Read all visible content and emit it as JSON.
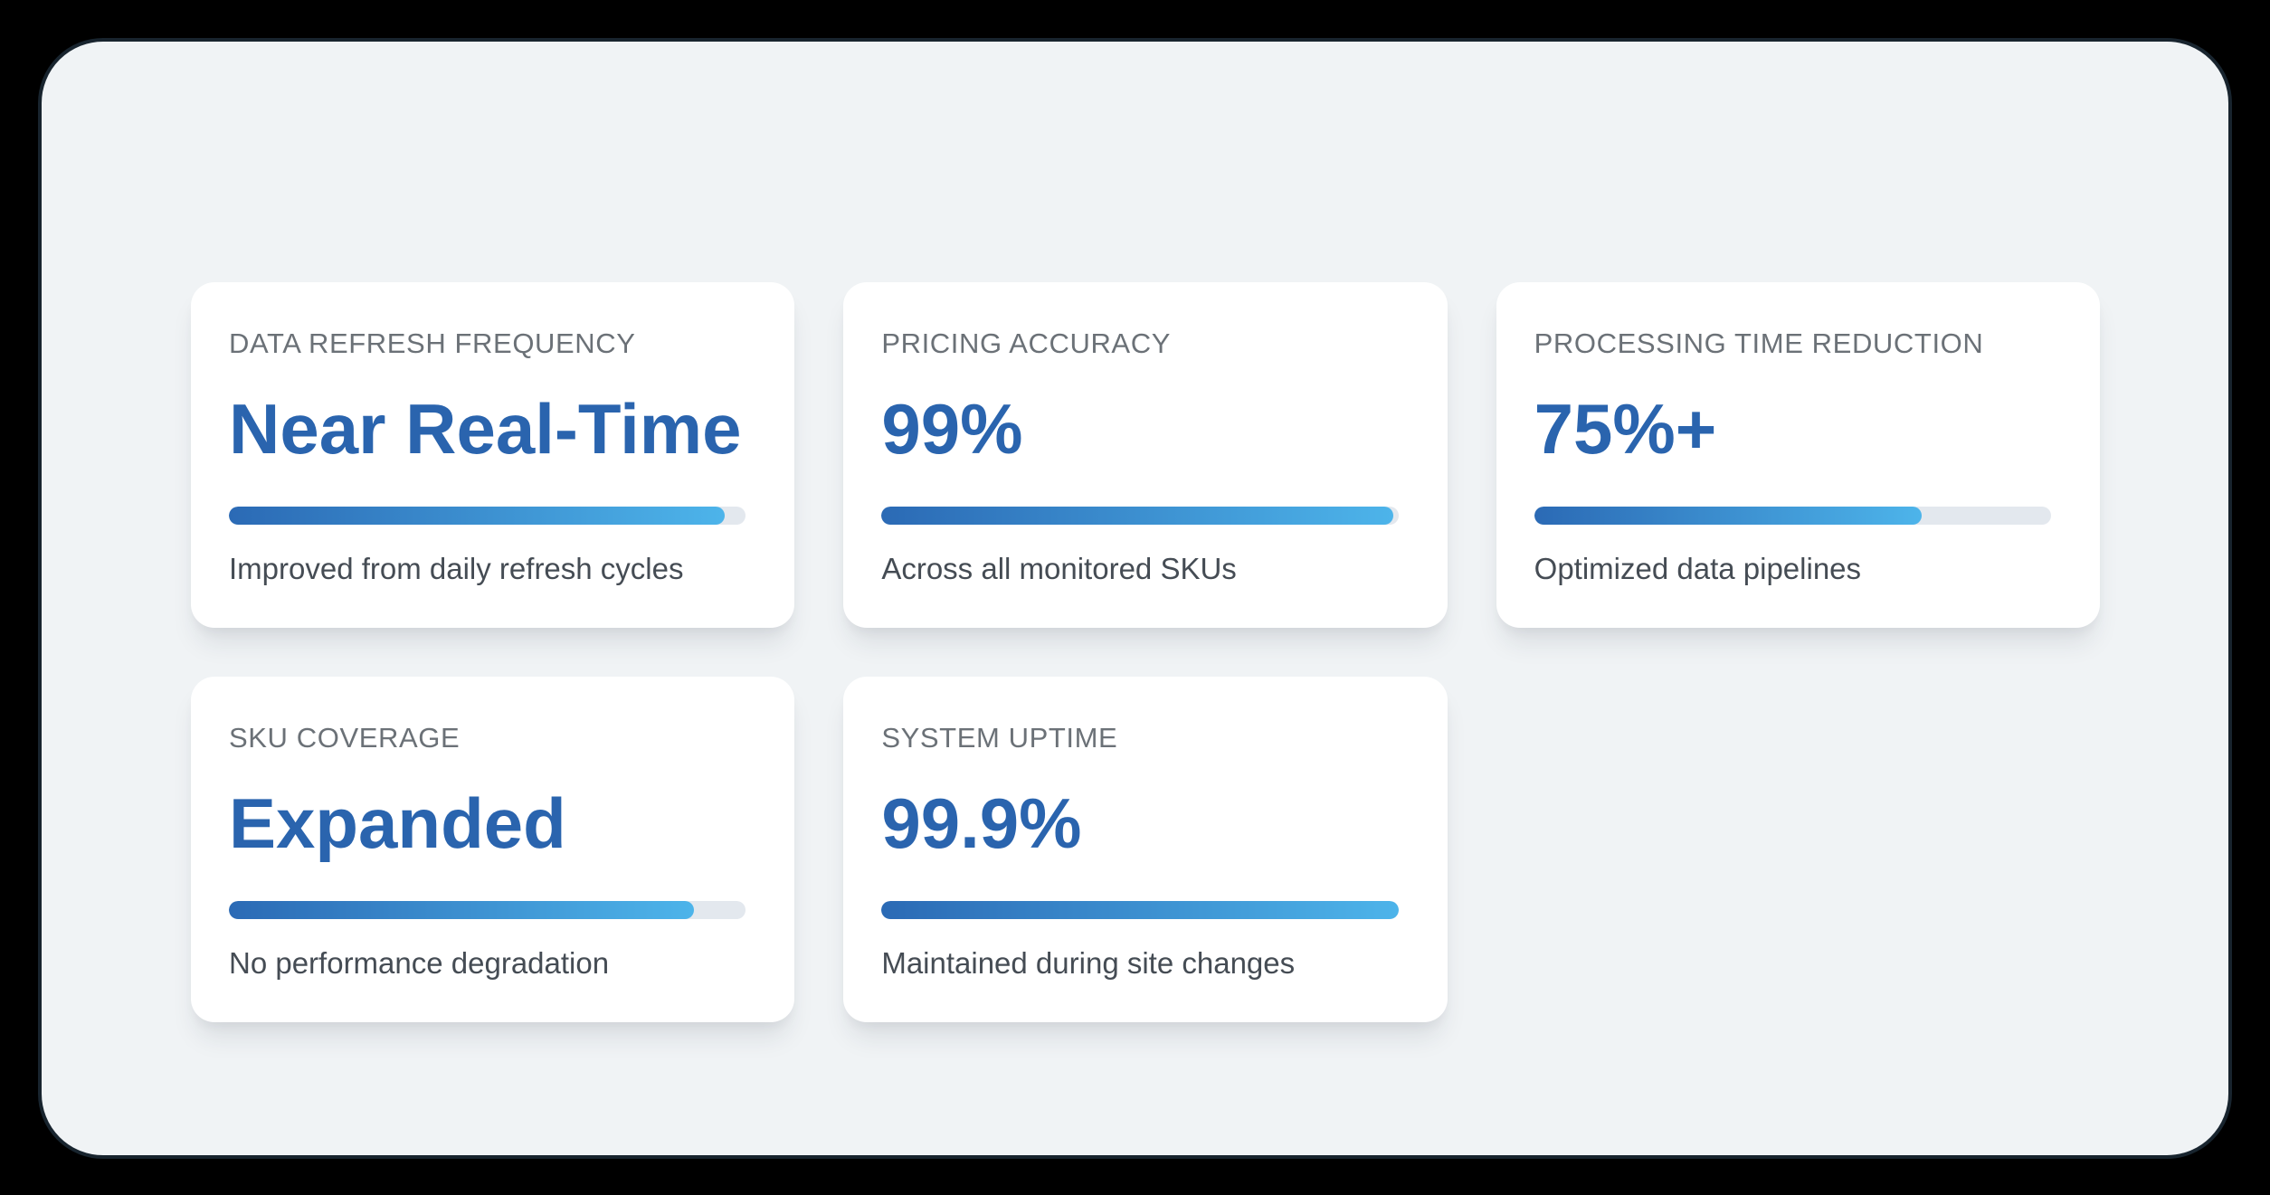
{
  "page": {
    "background_color": "#000000",
    "panel_background_color": "#f0f3f5",
    "panel_border_color": "#18242e"
  },
  "colors": {
    "value_blue": "#2a64ae",
    "bar_gradient_start": "#2b6ab5",
    "bar_gradient_end": "#4db4ea",
    "bar_track_gray": "#e3e8ee",
    "label_gray": "#6b7177",
    "caption_gray": "#454c54",
    "card_background": "#ffffff"
  },
  "metrics": [
    {
      "label": "DATA REFRESH FREQUENCY",
      "value": "Near Real-Time",
      "caption": "Improved from daily refresh cycles",
      "progress_percent": 96
    },
    {
      "label": "PRICING ACCURACY",
      "value": "99%",
      "caption": "Across all monitored SKUs",
      "progress_percent": 99
    },
    {
      "label": "PROCESSING TIME REDUCTION",
      "value": "75%+",
      "caption": "Optimized data pipelines",
      "progress_percent": 75
    },
    {
      "label": "SKU COVERAGE",
      "value": "Expanded",
      "caption": "No performance degradation",
      "progress_percent": 90
    },
    {
      "label": "SYSTEM UPTIME",
      "value": "99.9%",
      "caption": "Maintained during site changes",
      "progress_percent": 100
    }
  ]
}
